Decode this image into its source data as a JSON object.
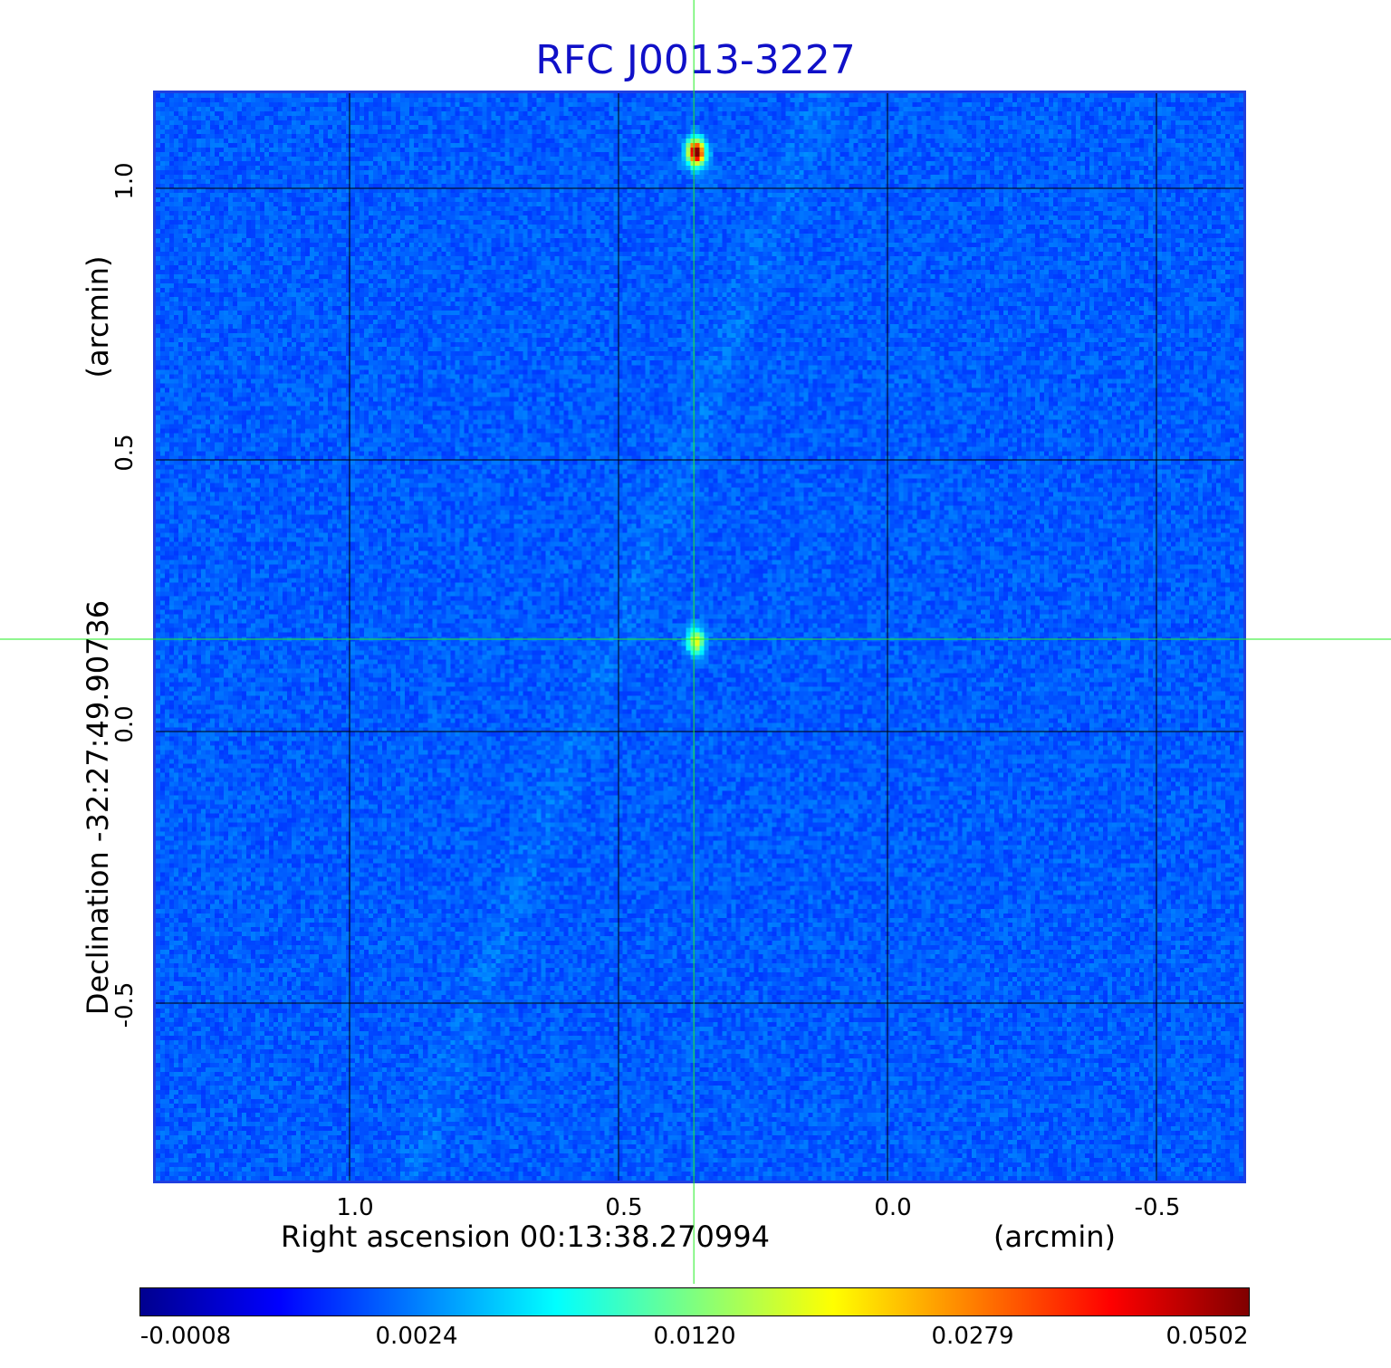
{
  "title": "RFC J0013-3227",
  "colors": {
    "title": "#1010c8",
    "frame": "#1f3fe0",
    "grid": "#000000",
    "crosshair": "#22ee22",
    "background_map": "#1f55f0"
  },
  "axes": {
    "x_label": "Right ascension  00:13:38.270994",
    "x_unit": "(arcmin)",
    "x_ticks": [
      "1.0",
      "0.5",
      "0.0",
      "-0.5"
    ],
    "y_label": "Declination  -32:27:49.90736",
    "y_unit": "(arcmin)",
    "y_ticks": [
      "1.0",
      "0.5",
      "0.0",
      "-0.5"
    ],
    "grid": true
  },
  "colorbar": {
    "colormap": "jet",
    "ticks": [
      "-0.0008",
      "0.0024",
      "0.0120",
      "0.0279",
      "0.0502"
    ]
  },
  "map": {
    "sources": [
      {
        "ra_arcmin": 0.36,
        "dec_arcmin": 1.07,
        "peak": 0.0502
      },
      {
        "ra_arcmin": 0.36,
        "dec_arcmin": 0.17,
        "peak": 0.016
      }
    ],
    "crosshair": {
      "ra_arcmin": 0.36,
      "dec_arcmin": 0.17
    }
  }
}
